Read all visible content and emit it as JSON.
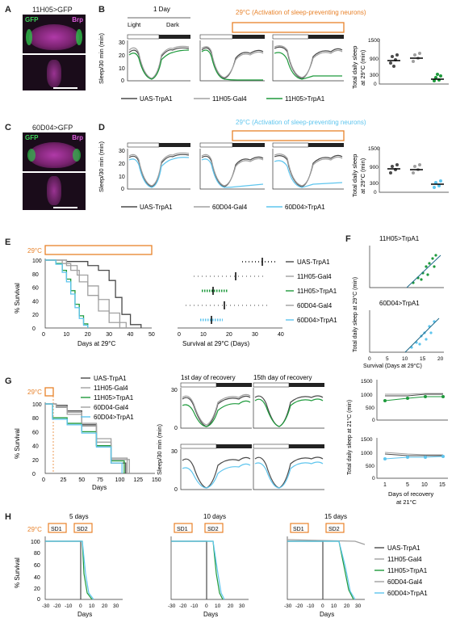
{
  "panels": {
    "A": "A",
    "B": "B",
    "C": "C",
    "D": "D",
    "E": "E",
    "F": "F",
    "G": "G",
    "H": "H"
  },
  "A": {
    "title": "11H05>GFP",
    "gfp": "GFP",
    "brp": "Brp"
  },
  "C": {
    "title": "60D04>GFP",
    "gfp": "GFP",
    "brp": "Brp"
  },
  "B": {
    "day_label": "1 Day",
    "light": "Light",
    "dark": "Dark",
    "banner": "29°C (Activation of sleep-preventing neurons)",
    "ylabel": "Sleep/30 min (min)",
    "yticks": [
      "0",
      "10",
      "20",
      "30"
    ],
    "legend": [
      "UAS-TrpA1",
      "11H05-Gal4",
      "11H05>TrpA1"
    ],
    "right_ylabel": [
      "Total daily sleep",
      "at 29°C (min)"
    ],
    "right_yticks": [
      "0",
      "300",
      "600",
      "900",
      "1200",
      "1500"
    ]
  },
  "D": {
    "banner": "29°C (Activation of sleep-preventing neurons)",
    "ylabel": "Sleep/30 min (min)",
    "yticks": [
      "0",
      "10",
      "20",
      "30"
    ],
    "legend": [
      "UAS-TrpA1",
      "60D04-Gal4",
      "60D04>TrpA1"
    ],
    "right_ylabel": [
      "Total daily sleep",
      "at 29°C (min)"
    ],
    "right_yticks": [
      "0",
      "300",
      "600",
      "900",
      "1200",
      "1500"
    ]
  },
  "E": {
    "temp": "29°C",
    "ylabel": "% Survival",
    "yticks": [
      "0",
      "20",
      "40",
      "60",
      "80",
      "100"
    ],
    "xticks": [
      "0",
      "10",
      "20",
      "30",
      "40",
      "50"
    ],
    "xlabel": "Days at 29°C",
    "scatter_xlabel": "Survival at 29°C (Days)",
    "scatter_xticks": [
      "0",
      "10",
      "20",
      "30",
      "40"
    ],
    "legend": [
      "UAS-TrpA1",
      "11H05-Gal4",
      "11H05>TrpA1",
      "60D04-Gal4",
      "60D04>TrpA1"
    ]
  },
  "F": {
    "title1": "11H05>TrpA1",
    "title2": "60D04>TrpA1",
    "ylabel": "Total daily sleep at 29°C (min)",
    "yticks": [
      "0",
      "300",
      "600",
      "900"
    ],
    "xticks": [
      "0",
      "5",
      "10",
      "15",
      "20"
    ],
    "xlabel": "Survival (Days at 29°C)"
  },
  "G": {
    "temp": "29°C",
    "legend": [
      "UAS-TrpA1",
      "11H05-Gal4",
      "11H05>TrpA1",
      "60D04-Gal4",
      "60D04>TrpA1"
    ],
    "ylabel": "% Survival",
    "yticks": [
      "0",
      "20",
      "40",
      "60",
      "80",
      "100"
    ],
    "xticks": [
      "0",
      "25",
      "50",
      "75",
      "100",
      "125",
      "150"
    ],
    "xlabel": "Days",
    "rec1": "1st day of recovery",
    "rec15": "15th day of recovery",
    "sleep_ylabel": "Sleep/30 min (min)",
    "sleep_yticks": [
      "0",
      "10",
      "20",
      "30"
    ],
    "right_ylabel": "Total daily sleep at 21°C (min)",
    "right_yticks": [
      "0",
      "500",
      "1000",
      "1500"
    ],
    "right_xticks": [
      "1",
      "5",
      "10",
      "15"
    ],
    "right_xlabel": [
      "Days of recovery",
      "at 21°C"
    ]
  },
  "H": {
    "temp": "29°C",
    "titles": [
      "5 days",
      "10 days",
      "15 days"
    ],
    "sd1": "SD1",
    "sd2": "SD2",
    "ylabel": "% Survival",
    "yticks": [
      "0",
      "20",
      "40",
      "60",
      "80",
      "100"
    ],
    "xticks": [
      "-30",
      "-20",
      "-10",
      "0",
      "10",
      "20",
      "30"
    ],
    "xlabel": "Days",
    "legend": [
      "UAS-TrpA1",
      "11H05-Gal4",
      "11H05>TrpA1",
      "60D04-Gal4",
      "60D04>TrpA1"
    ]
  },
  "colors": {
    "uas": "#4a4a4a",
    "gal4": "#a0a0a0",
    "green": "#1e9a3c",
    "blue": "#5ec5ee",
    "orange": "#e8822a",
    "magenta": "#d94fd0"
  },
  "chart_data": [
    {
      "panel": "E",
      "type": "line",
      "title": "",
      "xlabel": "Days at 29°C",
      "ylabel": "% Survival",
      "xlim": [
        0,
        50
      ],
      "ylim": [
        0,
        100
      ],
      "series": [
        {
          "name": "UAS-TrpA1",
          "x": [
            0,
            10,
            20,
            25,
            30,
            33,
            36,
            40,
            45
          ],
          "values": [
            100,
            98,
            92,
            85,
            70,
            45,
            20,
            5,
            0
          ]
        },
        {
          "name": "11H05-Gal4",
          "x": [
            0,
            10,
            15,
            20,
            25,
            30,
            35,
            38
          ],
          "values": [
            100,
            92,
            78,
            62,
            42,
            22,
            8,
            0
          ]
        },
        {
          "name": "11H05>TrpA1",
          "x": [
            0,
            5,
            8,
            10,
            12,
            14,
            16,
            18,
            20
          ],
          "values": [
            100,
            95,
            85,
            72,
            55,
            35,
            18,
            6,
            0
          ]
        },
        {
          "name": "60D04-Gal4",
          "x": [
            0,
            8,
            12,
            16,
            20,
            25,
            30,
            35
          ],
          "values": [
            100,
            95,
            85,
            68,
            48,
            25,
            8,
            0
          ]
        },
        {
          "name": "60D04>TrpA1",
          "x": [
            0,
            5,
            8,
            10,
            12,
            14,
            16,
            18,
            20
          ],
          "values": [
            100,
            94,
            82,
            68,
            50,
            30,
            14,
            4,
            0
          ]
        }
      ]
    },
    {
      "panel": "G",
      "type": "line",
      "title": "",
      "xlabel": "Days",
      "ylabel": "% Survival",
      "xlim": [
        0,
        150
      ],
      "ylim": [
        0,
        100
      ],
      "series": [
        {
          "name": "UAS-TrpA1",
          "x": [
            0,
            15,
            30,
            50,
            70,
            90,
            110
          ],
          "values": [
            100,
            98,
            90,
            70,
            40,
            15,
            0
          ]
        },
        {
          "name": "11H05-Gal4",
          "x": [
            0,
            15,
            30,
            50,
            70,
            90,
            115
          ],
          "values": [
            100,
            95,
            85,
            68,
            45,
            20,
            0
          ]
        },
        {
          "name": "11H05>TrpA1",
          "x": [
            0,
            10,
            30,
            50,
            70,
            90,
            108
          ],
          "values": [
            100,
            80,
            72,
            60,
            40,
            18,
            0
          ]
        },
        {
          "name": "60D04-Gal4",
          "x": [
            0,
            15,
            30,
            50,
            70,
            90,
            112
          ],
          "values": [
            100,
            96,
            88,
            72,
            50,
            22,
            0
          ]
        },
        {
          "name": "60D04>TrpA1",
          "x": [
            0,
            10,
            30,
            50,
            70,
            90,
            105
          ],
          "values": [
            100,
            78,
            70,
            58,
            38,
            15,
            0
          ]
        }
      ]
    }
  ]
}
